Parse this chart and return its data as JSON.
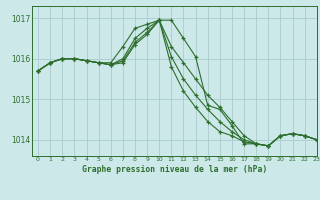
{
  "title": "Graphe pression niveau de la mer (hPa)",
  "background_color": "#cce8e8",
  "grid_color": "#aacccc",
  "line_color": "#2d6e2d",
  "xlim": [
    -0.5,
    23
  ],
  "ylim": [
    1013.6,
    1017.3
  ],
  "yticks": [
    1014,
    1015,
    1016,
    1017
  ],
  "xticks": [
    0,
    1,
    2,
    3,
    4,
    5,
    6,
    7,
    8,
    9,
    10,
    11,
    12,
    13,
    14,
    15,
    16,
    17,
    18,
    19,
    20,
    21,
    22,
    23
  ],
  "series": [
    [
      1015.7,
      1015.9,
      1016.0,
      1016.0,
      1015.95,
      1015.9,
      1015.9,
      1016.3,
      1016.75,
      1016.85,
      1016.95,
      1016.95,
      1016.5,
      1016.05,
      1014.85,
      1014.75,
      1014.35,
      1013.9,
      1013.9,
      1013.85,
      1014.1,
      1014.15,
      1014.1,
      1014.0
    ],
    [
      1015.7,
      1015.9,
      1016.0,
      1016.0,
      1015.95,
      1015.9,
      1015.85,
      1016.0,
      1016.5,
      1016.75,
      1016.95,
      1016.3,
      1015.9,
      1015.5,
      1015.1,
      1014.8,
      1014.45,
      1014.1,
      1013.9,
      1013.85,
      1014.1,
      1014.15,
      1014.1,
      1014.0
    ],
    [
      1015.7,
      1015.9,
      1016.0,
      1016.0,
      1015.95,
      1015.9,
      1015.85,
      1015.95,
      1016.4,
      1016.65,
      1016.95,
      1016.05,
      1015.5,
      1015.1,
      1014.75,
      1014.45,
      1014.2,
      1014.0,
      1013.9,
      1013.85,
      1014.1,
      1014.15,
      1014.1,
      1014.0
    ],
    [
      1015.7,
      1015.9,
      1016.0,
      1016.0,
      1015.95,
      1015.9,
      1015.85,
      1015.9,
      1016.35,
      1016.6,
      1016.95,
      1015.8,
      1015.2,
      1014.8,
      1014.45,
      1014.2,
      1014.1,
      1013.95,
      1013.9,
      1013.85,
      1014.1,
      1014.15,
      1014.1,
      1014.0
    ]
  ],
  "figsize": [
    3.2,
    2.0
  ],
  "dpi": 100
}
